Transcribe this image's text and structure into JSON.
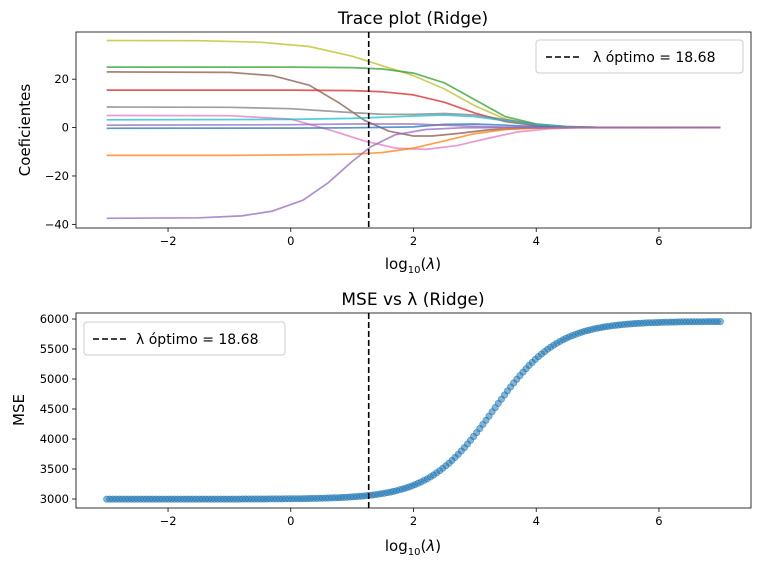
{
  "chart_data": [
    {
      "type": "line",
      "title": "Trace plot (Ridge)",
      "xlabel": "log10(λ)",
      "ylabel": "Coeficientes",
      "xlim": [
        -3.5,
        7.5
      ],
      "ylim": [
        -41.5,
        39.5
      ],
      "xticks": [
        -2,
        0,
        2,
        4,
        6
      ],
      "xtick_labels": [
        "−2",
        "0",
        "2",
        "4",
        "6"
      ],
      "yticks": [
        -40,
        -20,
        0,
        20
      ],
      "ytick_labels": [
        "−40",
        "−20",
        "0",
        "20"
      ],
      "grid": false,
      "legend_position": "top-right",
      "optimal_lambda": {
        "log10": 1.27,
        "label": "λ óptimo = 18.68",
        "color": "#000000",
        "style": "dashed"
      },
      "series": [
        {
          "color": "#bcbd22",
          "values": [
            [
              -3,
              36
            ],
            [
              -1.5,
              35.9
            ],
            [
              -0.5,
              35.3
            ],
            [
              0.3,
              33.5
            ],
            [
              1.0,
              29.5
            ],
            [
              1.5,
              25.5
            ],
            [
              2.0,
              21.5
            ],
            [
              2.5,
              16
            ],
            [
              3.0,
              9
            ],
            [
              3.5,
              3.5
            ],
            [
              4.0,
              1.2
            ],
            [
              4.5,
              0.3
            ],
            [
              5.0,
              0.1
            ],
            [
              7.0,
              0
            ]
          ]
        },
        {
          "color": "#2ca02c",
          "values": [
            [
              -3,
              25
            ],
            [
              0,
              25
            ],
            [
              1.0,
              24.8
            ],
            [
              1.5,
              24.2
            ],
            [
              2.0,
              22.5
            ],
            [
              2.5,
              18.5
            ],
            [
              3.0,
              11.5
            ],
            [
              3.5,
              4.5
            ],
            [
              4.0,
              1.5
            ],
            [
              4.5,
              0.4
            ],
            [
              5.0,
              0.1
            ],
            [
              7.0,
              0
            ]
          ]
        },
        {
          "color": "#8c564b",
          "values": [
            [
              -3,
              23
            ],
            [
              -1.0,
              22.8
            ],
            [
              -0.3,
              21.5
            ],
            [
              0.3,
              17.5
            ],
            [
              0.8,
              10
            ],
            [
              1.2,
              3
            ],
            [
              1.6,
              -1.5
            ],
            [
              2.0,
              -3.5
            ],
            [
              2.3,
              -3.5
            ],
            [
              2.7,
              -2.5
            ],
            [
              3.2,
              -1
            ],
            [
              3.8,
              -0.2
            ],
            [
              4.5,
              0
            ],
            [
              7.0,
              0
            ]
          ]
        },
        {
          "color": "#d62728",
          "values": [
            [
              -3,
              15.5
            ],
            [
              0,
              15.5
            ],
            [
              1.0,
              15.3
            ],
            [
              1.5,
              14.8
            ],
            [
              2.0,
              13.5
            ],
            [
              2.5,
              10.5
            ],
            [
              3.0,
              6
            ],
            [
              3.5,
              2.5
            ],
            [
              4.0,
              0.8
            ],
            [
              4.5,
              0.2
            ],
            [
              5.0,
              0.05
            ],
            [
              7.0,
              0
            ]
          ]
        },
        {
          "color": "#7f7f7f",
          "values": [
            [
              -3,
              8.5
            ],
            [
              -1.0,
              8.4
            ],
            [
              0,
              7.8
            ],
            [
              1.0,
              6.2
            ],
            [
              1.5,
              5.5
            ],
            [
              2.0,
              5.5
            ],
            [
              2.5,
              5.8
            ],
            [
              3.0,
              5.2
            ],
            [
              3.5,
              3.3
            ],
            [
              4.0,
              1.4
            ],
            [
              4.5,
              0.4
            ],
            [
              5.0,
              0.1
            ],
            [
              7.0,
              0
            ]
          ]
        },
        {
          "color": "#e377c2",
          "values": [
            [
              -3,
              5
            ],
            [
              -1.0,
              4.9
            ],
            [
              0,
              3.5
            ],
            [
              0.7,
              -1.5
            ],
            [
              1.2,
              -5.5
            ],
            [
              1.7,
              -8.5
            ],
            [
              2.2,
              -9
            ],
            [
              2.7,
              -7.5
            ],
            [
              3.2,
              -4.5
            ],
            [
              3.7,
              -1.8
            ],
            [
              4.2,
              -0.5
            ],
            [
              4.7,
              -0.1
            ],
            [
              7.0,
              0
            ]
          ]
        },
        {
          "color": "#17becf",
          "values": [
            [
              -3,
              3.2
            ],
            [
              0,
              3.4
            ],
            [
              1.0,
              3.8
            ],
            [
              1.5,
              4.3
            ],
            [
              2.0,
              4.8
            ],
            [
              2.5,
              5.2
            ],
            [
              3.0,
              4.5
            ],
            [
              3.5,
              2.8
            ],
            [
              4.0,
              1.2
            ],
            [
              4.5,
              0.4
            ],
            [
              5.0,
              0.1
            ],
            [
              7.0,
              0
            ]
          ]
        },
        {
          "color": "#1f77b4",
          "values": [
            [
              -3,
              -0.3
            ],
            [
              0,
              -0.2
            ],
            [
              1.0,
              -0.1
            ],
            [
              2.0,
              0.3
            ],
            [
              2.5,
              1.3
            ],
            [
              3.0,
              1.5
            ],
            [
              3.5,
              1
            ],
            [
              4.0,
              0.4
            ],
            [
              4.5,
              0.1
            ],
            [
              7.0,
              0
            ]
          ]
        },
        {
          "color": "#9467bd",
          "values": [
            [
              -3,
              1.0
            ],
            [
              0,
              1.2
            ],
            [
              1.0,
              1.5
            ],
            [
              2.0,
              1.5
            ],
            [
              2.5,
              1.0
            ],
            [
              3.0,
              0.5
            ],
            [
              3.5,
              0.2
            ],
            [
              4.0,
              0.05
            ],
            [
              7.0,
              0
            ]
          ]
        },
        {
          "color": "#ff7f0e",
          "values": [
            [
              -3,
              -11.5
            ],
            [
              -1.0,
              -11.5
            ],
            [
              0,
              -11.3
            ],
            [
              1.0,
              -11
            ],
            [
              1.5,
              -10.3
            ],
            [
              2.0,
              -8.5
            ],
            [
              2.5,
              -5.5
            ],
            [
              3.0,
              -2.5
            ],
            [
              3.5,
              -0.8
            ],
            [
              4.0,
              -0.2
            ],
            [
              4.5,
              0
            ],
            [
              7.0,
              0
            ]
          ]
        },
        {
          "color": "#9467bd",
          "values": [
            [
              -3,
              -37.5
            ],
            [
              -1.5,
              -37.3
            ],
            [
              -0.8,
              -36.5
            ],
            [
              -0.3,
              -34.5
            ],
            [
              0.2,
              -30
            ],
            [
              0.6,
              -23
            ],
            [
              1.0,
              -14
            ],
            [
              1.3,
              -8
            ],
            [
              1.7,
              -3
            ],
            [
              2.2,
              -0.8
            ],
            [
              2.8,
              -0.1
            ],
            [
              3.5,
              0
            ],
            [
              7.0,
              0
            ]
          ]
        }
      ]
    },
    {
      "type": "scatter",
      "title": "MSE vs λ (Ridge)",
      "xlabel": "log10(λ)",
      "ylabel": "MSE",
      "xlim": [
        -3.5,
        7.5
      ],
      "ylim": [
        2850,
        6100
      ],
      "xticks": [
        -2,
        0,
        2,
        4,
        6
      ],
      "xtick_labels": [
        "−2",
        "0",
        "2",
        "4",
        "6"
      ],
      "yticks": [
        3000,
        3500,
        4000,
        4500,
        5000,
        5500,
        6000
      ],
      "ytick_labels": [
        "3000",
        "3500",
        "4000",
        "4500",
        "5000",
        "5500",
        "6000"
      ],
      "grid": false,
      "legend_position": "top-left",
      "optimal_lambda": {
        "log10": 1.27,
        "label": "λ óptimo = 18.68",
        "color": "#000000",
        "style": "dashed"
      },
      "marker_color": "#1f77b4",
      "x_range": [
        -3,
        7
      ],
      "n_points": 200,
      "curve": {
        "low": 2998,
        "high": 5960,
        "center": 3.3,
        "steepness": 1.9
      }
    }
  ]
}
